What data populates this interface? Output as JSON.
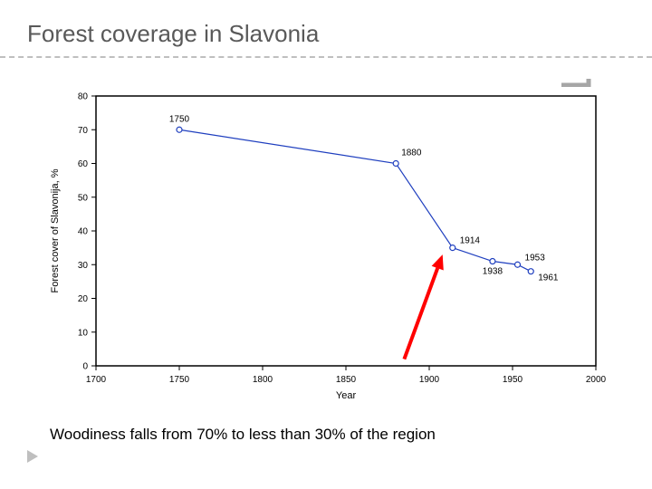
{
  "title": "Forest coverage in Slavonia",
  "caption": "Woodiness falls from 70% to less than 30% of the region",
  "chart": {
    "type": "line",
    "xlabel": "Year",
    "ylabel": "Forest cover of Slavonija, %",
    "label_fontsize": 11,
    "label_color": "#000000",
    "tick_fontsize": 10,
    "tick_color": "#000000",
    "background_color": "#ffffff",
    "axis_color": "#000000",
    "axis_width": 1.5,
    "xlim": [
      1700,
      2000
    ],
    "ylim": [
      0,
      80
    ],
    "xtick_step": 50,
    "ytick_step": 10,
    "xticks": [
      1700,
      1750,
      1800,
      1850,
      1900,
      1950,
      2000
    ],
    "yticks": [
      0,
      10,
      20,
      30,
      40,
      50,
      60,
      70,
      80
    ],
    "series": {
      "line_color": "#1f3fbf",
      "line_width": 1.2,
      "marker_style": "circle",
      "marker_size": 4,
      "marker_fill": "#ffffff",
      "marker_stroke": "#1f3fbf",
      "marker_stroke_width": 1.2,
      "points": [
        {
          "x": 1750,
          "y": 70,
          "label": "1750",
          "label_dx": 0,
          "label_dy": -9,
          "anchor": "middle"
        },
        {
          "x": 1880,
          "y": 60,
          "label": "1880",
          "label_dx": 6,
          "label_dy": -9,
          "anchor": "start"
        },
        {
          "x": 1914,
          "y": 35,
          "label": "1914",
          "label_dx": 8,
          "label_dy": -5,
          "anchor": "start"
        },
        {
          "x": 1938,
          "y": 31,
          "label": "1938",
          "label_dx": 0,
          "label_dy": 14,
          "anchor": "middle"
        },
        {
          "x": 1953,
          "y": 30,
          "label": "1953",
          "label_dx": 8,
          "label_dy": -5,
          "anchor": "start"
        },
        {
          "x": 1961,
          "y": 28,
          "label": "1961",
          "label_dx": 8,
          "label_dy": 10,
          "anchor": "start"
        }
      ],
      "point_label_fontsize": 10,
      "point_label_color": "#000000"
    },
    "arrow": {
      "color": "#ff0000",
      "width": 4,
      "from_x": 1885,
      "from_y": 2,
      "to_x": 1908,
      "to_y": 33
    }
  },
  "decor": {
    "divider_color": "#bfbfbf",
    "nub_color": "#a6a6a6",
    "triangle_color": "#bfbfbf"
  }
}
